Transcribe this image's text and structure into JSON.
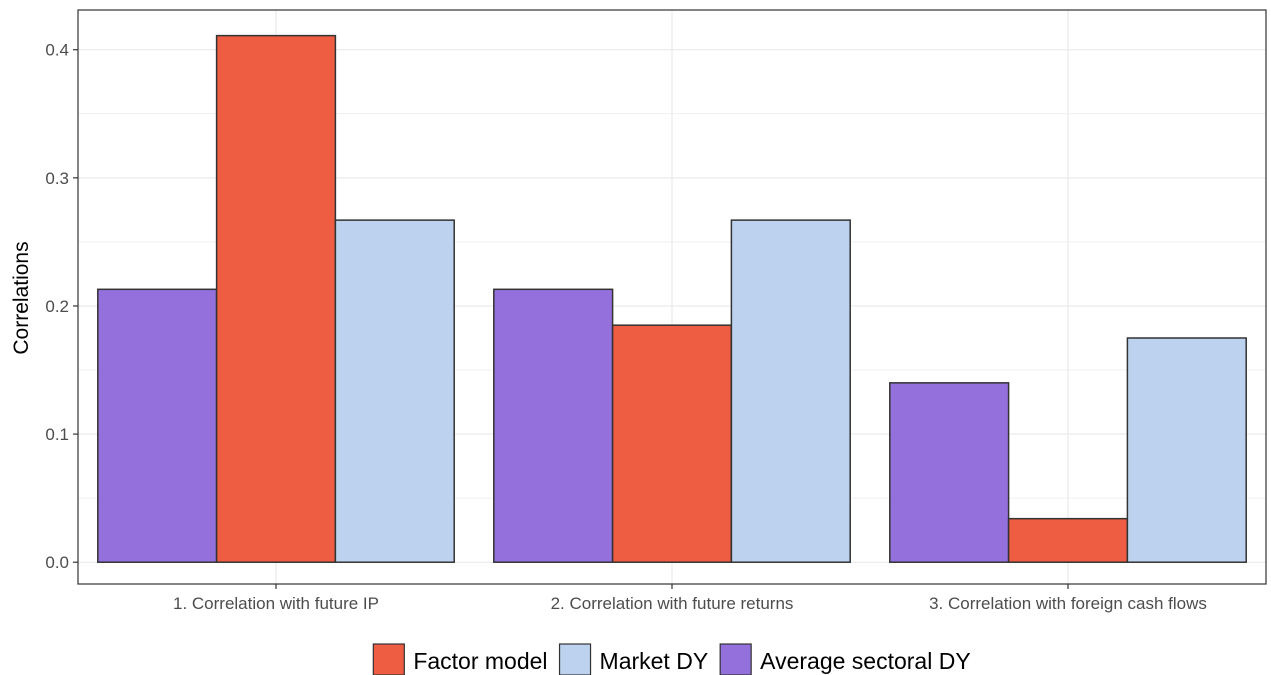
{
  "chart_data": {
    "type": "bar",
    "title": "",
    "xlabel": "",
    "ylabel": "Correlations",
    "ylim": [
      -0.017,
      0.431
    ],
    "yticks": [
      0.0,
      0.1,
      0.2,
      0.3,
      0.4
    ],
    "ytick_labels": [
      "0.0",
      "0.1",
      "0.2",
      "0.3",
      "0.4"
    ],
    "grid": true,
    "legend_position": "bottom",
    "categories": [
      "1. Correlation with future IP",
      "2. Correlation with future returns",
      "3. Correlation with foreign cash flows"
    ],
    "series": [
      {
        "name": "Average sectoral DY",
        "color": "#9370DB",
        "values": [
          0.213,
          0.213,
          0.14
        ]
      },
      {
        "name": "Factor model",
        "color": "#EE5C42",
        "values": [
          0.411,
          0.185,
          0.034
        ]
      },
      {
        "name": "Market DY",
        "color": "#BCD2EE",
        "values": [
          0.267,
          0.267,
          0.175
        ]
      }
    ],
    "legend_order": [
      "Factor model",
      "Market DY",
      "Average sectoral DY"
    ],
    "bar_outline_color": "#333333",
    "grid_color": "#ebebeb",
    "panel_border_color": "#333333"
  }
}
